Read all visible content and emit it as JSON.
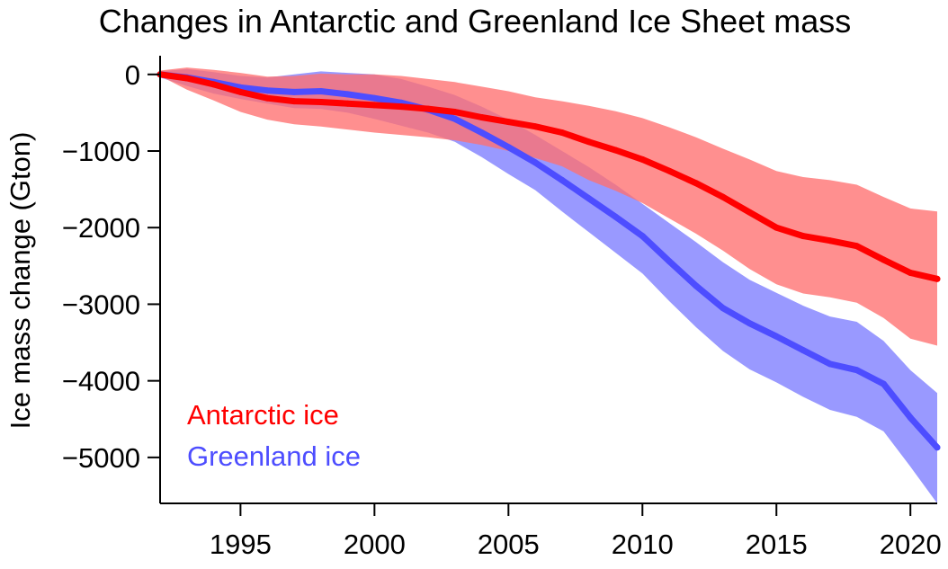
{
  "chart_data": {
    "type": "line",
    "title": "Changes in Antarctic and Greenland Ice Sheet mass",
    "xlabel": "",
    "ylabel": "Ice mass change (Gton)",
    "xlim": [
      1992,
      2021
    ],
    "ylim": [
      -5600,
      150
    ],
    "x_ticks": [
      1995,
      2000,
      2005,
      2010,
      2015,
      2020
    ],
    "y_ticks": [
      0,
      -1000,
      -2000,
      -3000,
      -4000,
      -5000
    ],
    "y_tick_labels": [
      "0",
      "−1000",
      "−2000",
      "−3000",
      "−4000",
      "−5000"
    ],
    "grid": false,
    "legend": "bottom-left",
    "x": [
      1992,
      1993,
      1994,
      1995,
      1996,
      1997,
      1998,
      1999,
      2000,
      2001,
      2002,
      2003,
      2004,
      2005,
      2006,
      2007,
      2008,
      2009,
      2010,
      2011,
      2012,
      2013,
      2014,
      2015,
      2016,
      2017,
      2018,
      2019,
      2020,
      2021
    ],
    "series": [
      {
        "name": "Antarctic ice",
        "color": "#ff0000",
        "band_color": "#ff7070",
        "values": [
          0,
          -50,
          -130,
          -230,
          -310,
          -350,
          -360,
          -380,
          -400,
          -420,
          -450,
          -490,
          -560,
          -620,
          -680,
          -760,
          -880,
          -990,
          -1110,
          -1260,
          -1420,
          -1600,
          -1800,
          -2000,
          -2110,
          -2170,
          -2240,
          -2420,
          -2590,
          -2670
        ],
        "upper": [
          50,
          90,
          60,
          20,
          -30,
          -20,
          10,
          0,
          0,
          -20,
          -60,
          -100,
          -160,
          -220,
          -300,
          -350,
          -410,
          -480,
          -570,
          -690,
          -820,
          -970,
          -1110,
          -1260,
          -1340,
          -1380,
          -1440,
          -1600,
          -1750,
          -1790
        ],
        "lower": [
          -20,
          -200,
          -340,
          -490,
          -590,
          -650,
          -680,
          -720,
          -760,
          -790,
          -820,
          -860,
          -920,
          -1000,
          -1090,
          -1200,
          -1380,
          -1520,
          -1680,
          -1880,
          -2080,
          -2300,
          -2540,
          -2740,
          -2860,
          -2910,
          -2980,
          -3180,
          -3450,
          -3540
        ]
      },
      {
        "name": "Greenland ice",
        "color": "#4d4dff",
        "band_color": "#9393ff",
        "values": [
          0,
          -40,
          -100,
          -170,
          -210,
          -230,
          -220,
          -260,
          -310,
          -370,
          -460,
          -580,
          -760,
          -950,
          -1150,
          -1380,
          -1620,
          -1860,
          -2110,
          -2440,
          -2760,
          -3050,
          -3250,
          -3420,
          -3600,
          -3780,
          -3860,
          -4040,
          -4480,
          -4870
        ],
        "upper": [
          40,
          70,
          30,
          -20,
          -40,
          0,
          40,
          20,
          0,
          -60,
          -160,
          -270,
          -420,
          -590,
          -790,
          -1000,
          -1210,
          -1440,
          -1690,
          -1940,
          -2190,
          -2450,
          -2680,
          -2850,
          -3020,
          -3160,
          -3230,
          -3480,
          -3860,
          -4160
        ],
        "lower": [
          -40,
          -150,
          -250,
          -320,
          -380,
          -440,
          -450,
          -500,
          -580,
          -670,
          -760,
          -880,
          -1080,
          -1300,
          -1510,
          -1790,
          -2060,
          -2330,
          -2600,
          -2960,
          -3300,
          -3610,
          -3850,
          -4020,
          -4210,
          -4380,
          -4470,
          -4660,
          -5120,
          -5600
        ]
      }
    ]
  }
}
